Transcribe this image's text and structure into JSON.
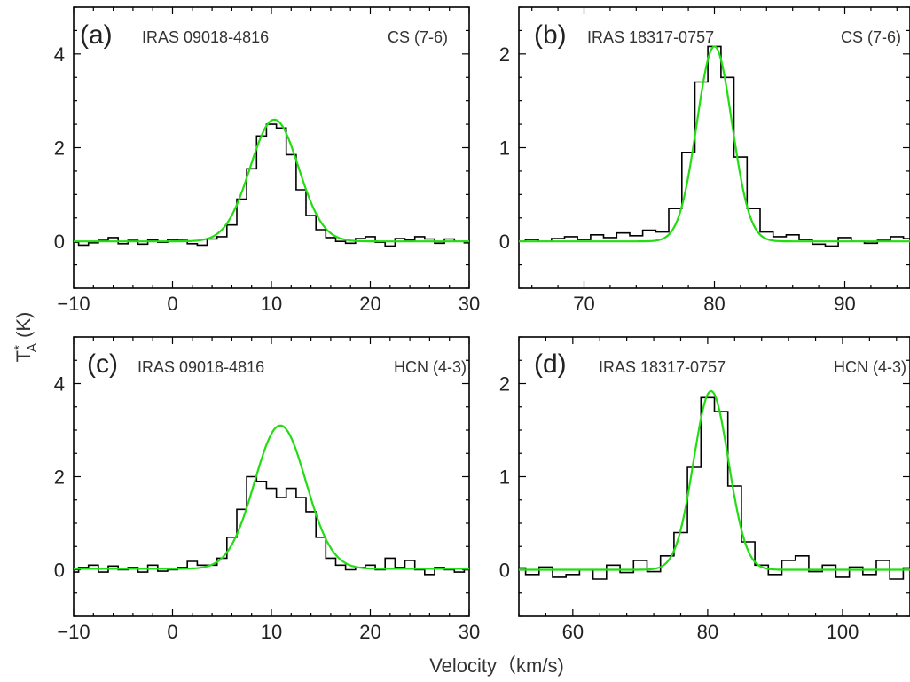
{
  "figure": {
    "xlabel": "Velocity（km/s)",
    "ylabel_main": "T",
    "ylabel_sup": "*",
    "ylabel_sub": "A",
    "ylabel_unit": " (K)"
  },
  "chart_data": [
    {
      "type": "line",
      "panel": "(a)",
      "source": "IRAS 09018-4816",
      "transition": "CS (7-6)",
      "xlim": [
        -10,
        30
      ],
      "ylim": [
        -1,
        5
      ],
      "xticks": [
        -10,
        0,
        10,
        20,
        30
      ],
      "yticks": [
        0,
        2,
        4
      ],
      "series": [
        {
          "kind": "histogram",
          "x": [
            -10,
            -9,
            -8,
            -7,
            -6,
            -5,
            -4,
            -3,
            -2,
            -1,
            0,
            1,
            2,
            3,
            4,
            5,
            6,
            7,
            8,
            9,
            10,
            11,
            12,
            13,
            14,
            15,
            16,
            17,
            18,
            19,
            20,
            21,
            22,
            23,
            24,
            25,
            26,
            27,
            28,
            29,
            30
          ],
          "values": [
            -0.02,
            -0.08,
            -0.03,
            0.02,
            0.08,
            -0.05,
            0.02,
            -0.06,
            0.03,
            -0.02,
            0.04,
            0.02,
            -0.05,
            -0.08,
            0.05,
            0.1,
            0.35,
            0.9,
            1.55,
            2.25,
            2.5,
            2.42,
            1.85,
            1.1,
            0.55,
            0.25,
            0.08,
            0.0,
            -0.04,
            0.06,
            0.1,
            -0.02,
            -0.1,
            0.06,
            0.03,
            0.1,
            0.05,
            -0.04,
            0.05,
            0.0,
            -0.03
          ]
        },
        {
          "kind": "gaussian",
          "amplitude": 2.6,
          "center": 10.3,
          "sigma": 2.45,
          "baseline": 0.0
        }
      ]
    },
    {
      "type": "line",
      "panel": "(b)",
      "source": "IRAS 18317-0757",
      "transition": "CS (7-6)",
      "xlim": [
        65,
        95
      ],
      "ylim": [
        -0.5,
        2.5
      ],
      "xticks": [
        70,
        80,
        90
      ],
      "yticks": [
        0,
        1,
        2
      ],
      "series": [
        {
          "kind": "histogram",
          "x": [
            65,
            66,
            67,
            68,
            69,
            70,
            71,
            72,
            73,
            74,
            75,
            76,
            77,
            78,
            79,
            80,
            81,
            82,
            83,
            84,
            85,
            86,
            87,
            88,
            89,
            90,
            91,
            92,
            93,
            94,
            95
          ],
          "values": [
            0.0,
            0.02,
            0.0,
            0.03,
            0.05,
            0.02,
            0.07,
            0.04,
            0.09,
            0.06,
            0.12,
            0.1,
            0.35,
            0.95,
            1.7,
            2.08,
            1.75,
            0.9,
            0.35,
            0.1,
            0.05,
            0.07,
            0.02,
            -0.03,
            -0.05,
            0.04,
            0.0,
            -0.02,
            0.01,
            0.05,
            0.03
          ]
        },
        {
          "kind": "gaussian",
          "amplitude": 2.08,
          "center": 80.0,
          "sigma": 1.35,
          "baseline": 0.0
        }
      ]
    },
    {
      "type": "line",
      "panel": "(c)",
      "source": "IRAS 09018-4816",
      "transition": "HCN (4-3)",
      "xlim": [
        -10,
        30
      ],
      "ylim": [
        -1,
        5
      ],
      "xticks": [
        -10,
        0,
        10,
        20,
        30
      ],
      "yticks": [
        0,
        2,
        4
      ],
      "series": [
        {
          "kind": "histogram",
          "x": [
            -10,
            -9,
            -8,
            -7,
            -6,
            -5,
            -4,
            -3,
            -2,
            -1,
            0,
            1,
            2,
            3,
            4,
            5,
            6,
            7,
            8,
            9,
            10,
            11,
            12,
            13,
            14,
            15,
            16,
            17,
            18,
            19,
            20,
            21,
            22,
            23,
            24,
            25,
            26,
            27,
            28,
            29,
            30
          ],
          "values": [
            -0.05,
            0.05,
            0.1,
            -0.05,
            0.08,
            0.0,
            0.05,
            -0.05,
            0.1,
            -0.03,
            0.0,
            0.05,
            0.18,
            0.1,
            0.1,
            0.25,
            0.7,
            1.3,
            2.0,
            1.9,
            1.75,
            1.55,
            1.75,
            1.55,
            1.25,
            0.7,
            0.25,
            0.1,
            0.0,
            0.05,
            0.1,
            0.0,
            0.25,
            0.05,
            0.2,
            0.0,
            -0.1,
            0.05,
            0.0,
            -0.05,
            0.0
          ]
        },
        {
          "kind": "gaussian",
          "amplitude": 3.08,
          "center": 10.9,
          "sigma": 2.6,
          "baseline": 0.02
        }
      ]
    },
    {
      "type": "line",
      "panel": "(d)",
      "source": "IRAS 18317-0757",
      "transition": "HCN (4-3)",
      "xlim": [
        52,
        110
      ],
      "ylim": [
        -0.5,
        2.5
      ],
      "xticks": [
        60,
        80,
        100
      ],
      "yticks": [
        0,
        1,
        2
      ],
      "series": [
        {
          "kind": "histogram",
          "x": [
            52,
            54,
            56,
            58,
            60,
            62,
            64,
            66,
            68,
            70,
            72,
            74,
            76,
            78,
            80,
            82,
            84,
            86,
            88,
            90,
            92,
            94,
            96,
            98,
            100,
            102,
            104,
            106,
            108,
            110
          ],
          "values": [
            0.02,
            -0.05,
            0.03,
            -0.08,
            -0.05,
            0.0,
            -0.1,
            0.05,
            -0.03,
            0.1,
            -0.02,
            0.15,
            0.4,
            1.1,
            1.85,
            1.7,
            0.9,
            0.3,
            0.05,
            -0.05,
            0.1,
            0.15,
            -0.02,
            0.05,
            -0.08,
            0.03,
            -0.05,
            0.1,
            -0.1,
            0.02
          ]
        },
        {
          "kind": "gaussian",
          "amplitude": 1.92,
          "center": 80.5,
          "sigma": 2.6,
          "baseline": 0.0
        }
      ]
    }
  ]
}
